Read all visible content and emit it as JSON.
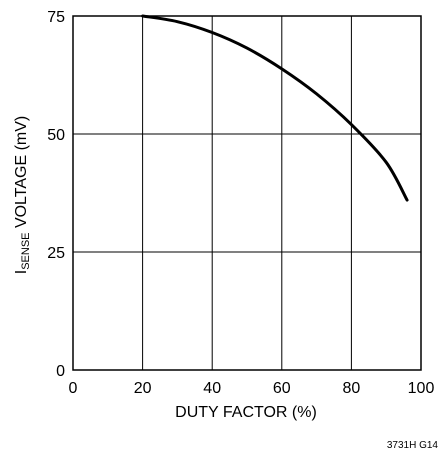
{
  "chart_data": {
    "type": "line",
    "xlabel": "DUTY FACTOR (%)",
    "ylabel": {
      "main": "I",
      "subscript": "SENSE",
      "rest": " VOLTAGE (mV)"
    },
    "xlim": [
      0,
      100
    ],
    "ylim": [
      0,
      75
    ],
    "x_ticks": [
      "0",
      "20",
      "40",
      "60",
      "80",
      "100"
    ],
    "y_ticks": [
      "0",
      "25",
      "50",
      "75"
    ],
    "grid": true,
    "series": [
      {
        "x": [
          20,
          30,
          40,
          50,
          60,
          70,
          80,
          90,
          96
        ],
        "y": [
          75,
          73.8,
          71.5,
          68.2,
          63.8,
          58.5,
          52,
          44,
          36
        ]
      }
    ],
    "annotation": "3731H G14"
  }
}
